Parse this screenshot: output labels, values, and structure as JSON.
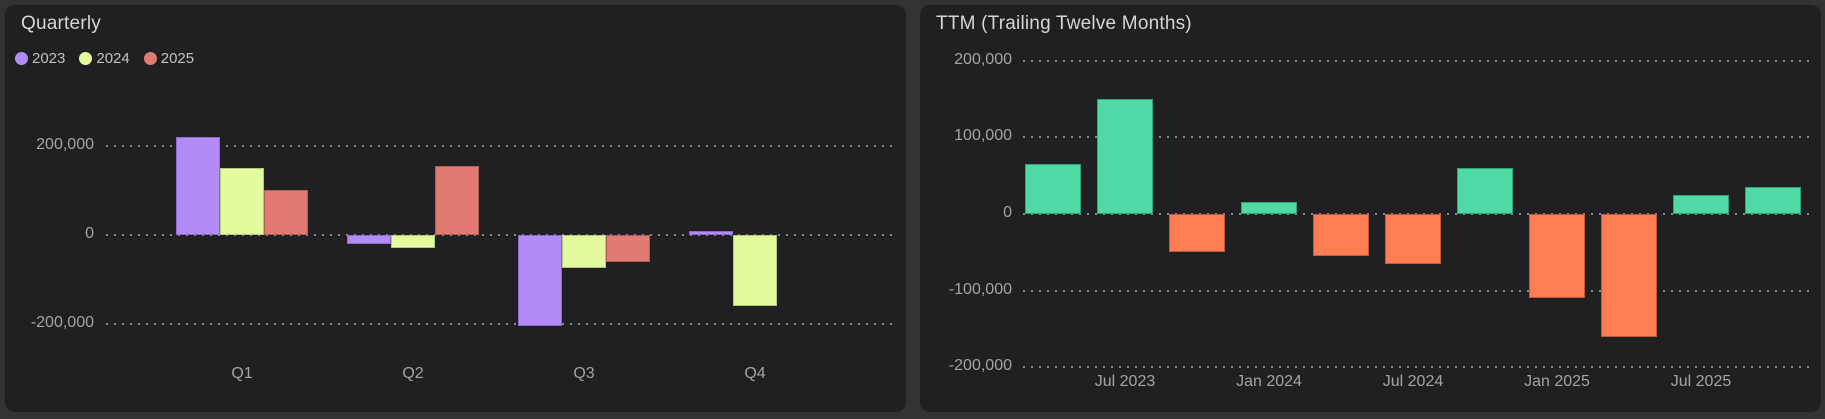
{
  "chart_data": [
    {
      "type": "bar",
      "title": "Quarterly",
      "categories": [
        "Q1",
        "Q2",
        "Q3",
        "Q4"
      ],
      "series": [
        {
          "name": "2023",
          "color": "#b38bf7",
          "border_color": "#8d6bcc",
          "values": [
            220000,
            -20000,
            -205000,
            10000
          ]
        },
        {
          "name": "2024",
          "color": "#e3fb9e",
          "border_color": "#b2c87a",
          "values": [
            150000,
            -30000,
            -75000,
            -160000
          ]
        },
        {
          "name": "2025",
          "color": "#e07a72",
          "border_color": "#b05e58",
          "values": [
            100000,
            155000,
            -60000,
            null
          ]
        }
      ],
      "yticks": [
        {
          "value": 200000,
          "label": "200,000"
        },
        {
          "value": 0,
          "label": "0"
        },
        {
          "value": -200000,
          "label": "-200,000"
        }
      ],
      "ylim": [
        -260000,
        260000
      ],
      "grid": "dotted-horizontal",
      "legend_position": "top-left"
    },
    {
      "type": "bar",
      "title": "TTM (Trailing Twelve Months)",
      "values": [
        65000,
        150000,
        -50000,
        15000,
        -55000,
        -65000,
        60000,
        -110000,
        -160000,
        25000,
        35000
      ],
      "positive_color": "#4fd9a4",
      "positive_border_color": "#32a279",
      "negative_color": "#fd7e53",
      "negative_border_color": "#c05a38",
      "x_tick_labels": [
        "Jul 2023",
        "Jan 2024",
        "Jul 2024",
        "Jan 2025",
        "Jul 2025"
      ],
      "x_tick_positions": [
        1,
        3,
        5,
        7,
        9
      ],
      "yticks": [
        {
          "value": 200000,
          "label": "200,000"
        },
        {
          "value": 100000,
          "label": "100,000"
        },
        {
          "value": 0,
          "label": "0"
        },
        {
          "value": -100000,
          "label": "-100,000"
        },
        {
          "value": -200000,
          "label": "-200,000"
        }
      ],
      "ylim": [
        -215000,
        215000
      ],
      "grid": "dotted-horizontal",
      "legend_position": "none"
    }
  ]
}
